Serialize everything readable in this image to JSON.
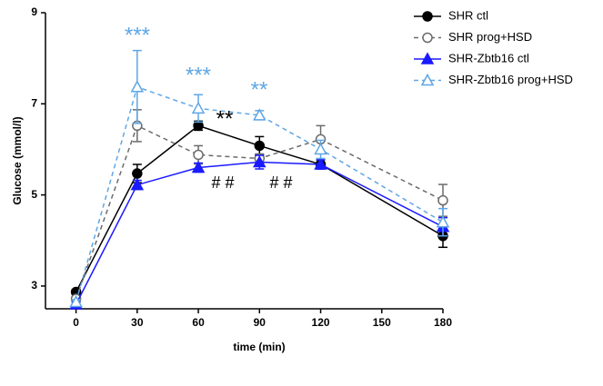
{
  "chart_data": {
    "type": "line",
    "x_label": "time (min)",
    "y_label": "Glucose (mmol/l)",
    "x": [
      0,
      30,
      60,
      90,
      120,
      180
    ],
    "xlim": [
      -15,
      180
    ],
    "xticks": [
      0,
      30,
      60,
      90,
      120,
      150,
      180
    ],
    "ylim": [
      2.5,
      9
    ],
    "yticks": [
      3,
      5,
      7,
      9
    ],
    "legend": "upper right",
    "series": [
      {
        "name": "SHR ctl",
        "color": "#000000",
        "dashed": false,
        "marker": "circle",
        "filled": true,
        "values": [
          2.87,
          5.47,
          6.52,
          6.08,
          5.67,
          4.1
        ],
        "errors": [
          0.05,
          0.2,
          0.1,
          0.2,
          0.1,
          0.25
        ]
      },
      {
        "name": "SHR prog+HSD",
        "color": "#6b6b6b",
        "dashed": true,
        "marker": "circle",
        "filled": false,
        "values": [
          2.72,
          6.52,
          5.88,
          5.8,
          6.22,
          4.88
        ],
        "errors": [
          0.05,
          0.35,
          0.2,
          0.1,
          0.3,
          0.35
        ]
      },
      {
        "name": "SHR-Zbtb16 ctl",
        "color": "#1a1aff",
        "dashed": false,
        "marker": "triangle",
        "filled": true,
        "values": [
          2.6,
          5.22,
          5.6,
          5.72,
          5.67,
          4.3
        ],
        "errors": [
          0.05,
          0.1,
          0.1,
          0.15,
          0.1,
          0.2
        ]
      },
      {
        "name": "SHR-Zbtb16 prog+HSD",
        "color": "#5ea6e6",
        "dashed": true,
        "marker": "triangle",
        "filled": false,
        "values": [
          2.65,
          7.37,
          6.9,
          6.75,
          6.0,
          4.4
        ],
        "errors": [
          0.05,
          0.8,
          0.3,
          0.1,
          0.2,
          0.3
        ]
      }
    ],
    "annotations": [
      {
        "text": "***",
        "color": "#5ea6e6"
      },
      {
        "text": "***",
        "color": "#5ea6e6"
      },
      {
        "text": "**",
        "color": "#5ea6e6"
      },
      {
        "text": "**",
        "color": "#000000"
      },
      {
        "text": "# #",
        "color": "#000000"
      },
      {
        "text": "# #",
        "color": "#000000"
      }
    ]
  }
}
